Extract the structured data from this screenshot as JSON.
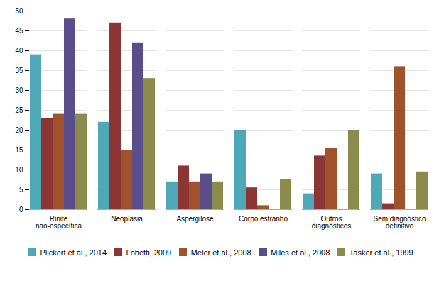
{
  "chart_data": {
    "type": "bar",
    "categories": [
      "Rinite\nnão-específica",
      "Neoplasia",
      "Aspergilose",
      "Corpo estranho",
      "Outros\ndiagnósticos",
      "Sem diagnóstico\ndefinitivo"
    ],
    "series": [
      {
        "name": "Plickert et al., 2014",
        "color": "#4FA8B8",
        "values": [
          39,
          22,
          7,
          20,
          4,
          9
        ]
      },
      {
        "name": "Lobetti, 2009",
        "color": "#8B3535",
        "values": [
          23,
          47,
          11,
          5.5,
          13.5,
          1.5
        ]
      },
      {
        "name": "Meler et al., 2008",
        "color": "#A0522D",
        "values": [
          24,
          15,
          7,
          1,
          15.5,
          36
        ]
      },
      {
        "name": "Miles et al., 2008",
        "color": "#5A4E8A",
        "values": [
          48,
          42,
          9,
          0,
          0,
          0
        ]
      },
      {
        "name": "Tasker et al., 1999",
        "color": "#8B8B4B",
        "values": [
          24,
          33,
          7,
          7.5,
          20,
          9.5
        ]
      }
    ],
    "ylim": [
      0,
      50
    ],
    "yticks": [
      0,
      5,
      10,
      15,
      20,
      25,
      30,
      35,
      40,
      45,
      50
    ],
    "grid": true,
    "legend": "bottom"
  }
}
